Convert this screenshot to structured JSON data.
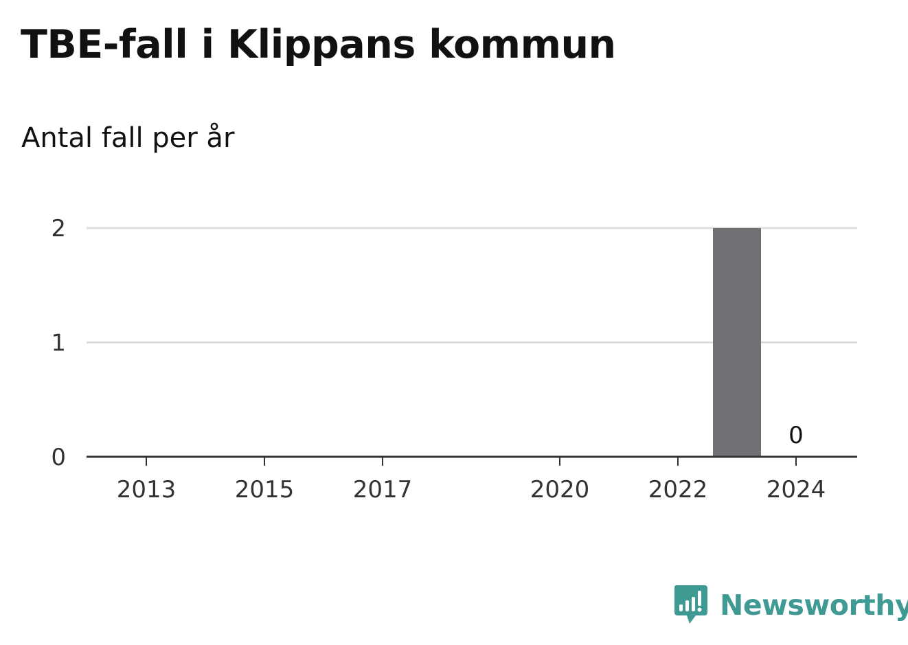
{
  "title": "TBE-fall i Klippans kommun",
  "subtitle": "Antal fall per år",
  "brand": {
    "name": "Newsworthy",
    "logo_icon": "newsworthy-logo-icon",
    "color": "#3f9a94"
  },
  "chart_data": {
    "type": "bar",
    "categories": [
      "2013",
      "2014",
      "2015",
      "2016",
      "2017",
      "2018",
      "2019",
      "2020",
      "2021",
      "2022",
      "2023",
      "2024"
    ],
    "values": [
      0,
      0,
      0,
      0,
      0,
      0,
      0,
      0,
      0,
      0,
      2,
      0
    ],
    "x_tick_labels": [
      "2013",
      "2015",
      "2017",
      "2020",
      "2022",
      "2024"
    ],
    "y_ticks": [
      0,
      1,
      2
    ],
    "ylim": [
      0,
      2
    ],
    "data_labels": [
      {
        "category": "2024",
        "text": "0"
      }
    ],
    "grid": true,
    "bar_color": "#717075",
    "grid_color": "#dddddd",
    "axis_color": "#333333"
  }
}
